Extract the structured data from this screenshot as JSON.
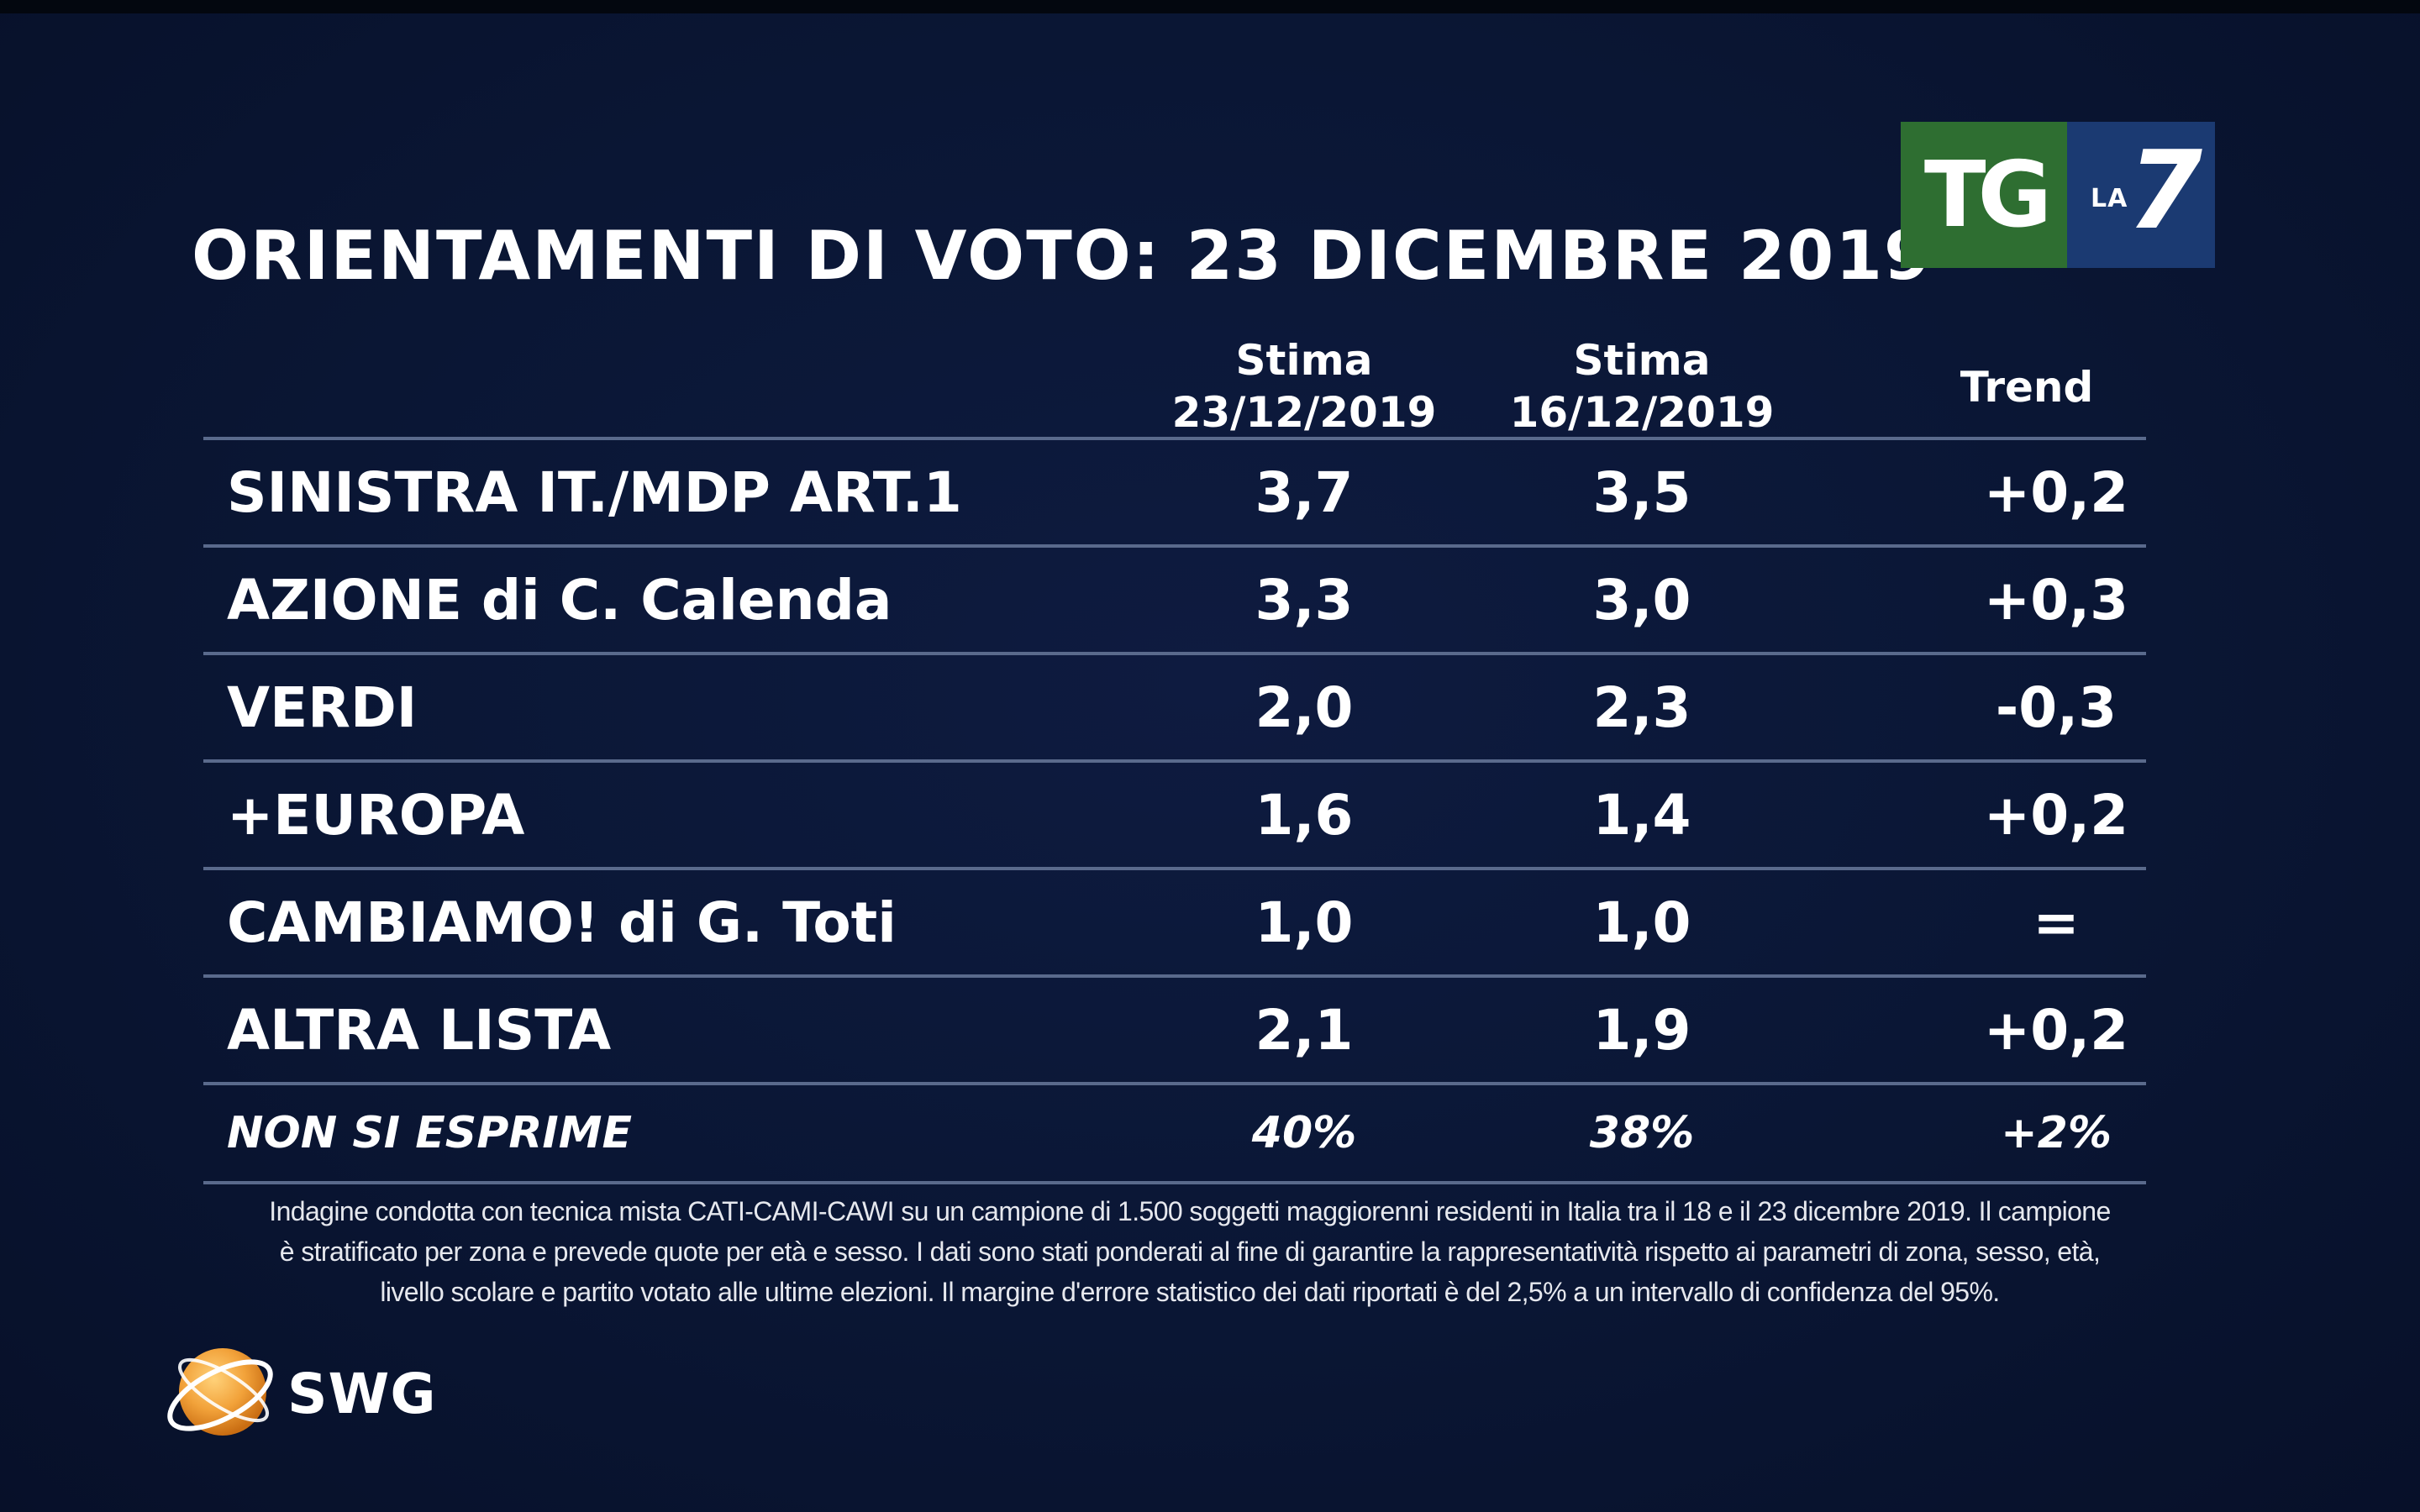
{
  "title": "ORIENTAMENTI DI VOTO: 23 DICEMBRE 2019",
  "logo": {
    "tg": "TG",
    "la": "LA",
    "seven": "7",
    "colors": {
      "tg_bg": "#2e6e31",
      "la7_bg": "#1b3a72"
    }
  },
  "chart_data": {
    "type": "table",
    "title": "ORIENTAMENTI DI VOTO: 23 DICEMBRE 2019",
    "columns": [
      {
        "line1": "Stima",
        "line2": "23/12/2019"
      },
      {
        "line1": "Stima",
        "line2": "16/12/2019"
      },
      {
        "line1": "Trend",
        "line2": ""
      }
    ],
    "rows": [
      {
        "party": "SINISTRA IT./MDP ART.1",
        "stima_23": "3,7",
        "stima_16": "3,5",
        "trend": "+0,2"
      },
      {
        "party": "AZIONE di C. Calenda",
        "stima_23": "3,3",
        "stima_16": "3,0",
        "trend": "+0,3"
      },
      {
        "party": "VERDI",
        "stima_23": "2,0",
        "stima_16": "2,3",
        "trend": "-0,3"
      },
      {
        "party": "+EUROPA",
        "stima_23": "1,6",
        "stima_16": "1,4",
        "trend": "+0,2"
      },
      {
        "party": "CAMBIAMO! di G. Toti",
        "stima_23": "1,0",
        "stima_16": "1,0",
        "trend": "="
      },
      {
        "party": "ALTRA LISTA",
        "stima_23": "2,1",
        "stima_16": "1,9",
        "trend": "+0,2"
      },
      {
        "party": "NON SI ESPRIME",
        "stima_23": "40%",
        "stima_16": "38%",
        "trend": "+2%"
      }
    ]
  },
  "footnote": {
    "line1": "Indagine condotta con tecnica mista CATI-CAMI-CAWI su un campione di 1.500 soggetti maggiorenni residenti in Italia tra il 18 e il 23 dicembre 2019. Il campione",
    "line2": "è stratificato per zona e prevede quote per età e sesso. I dati sono stati ponderati al fine di garantire la rappresentatività rispetto ai parametri di zona, sesso, età,",
    "line3": "livello scolare e partito votato alle ultime elezioni. Il margine d'errore statistico dei dati riportati è del 2,5% a un intervallo di confidenza del 95%."
  },
  "swg": {
    "label": "SWG",
    "colors": {
      "globe": "#f2a23a",
      "ring": "#ffffff"
    }
  },
  "colors": {
    "background": "#0a1634",
    "rule": "#5a6a8c",
    "text": "#ffffff"
  }
}
